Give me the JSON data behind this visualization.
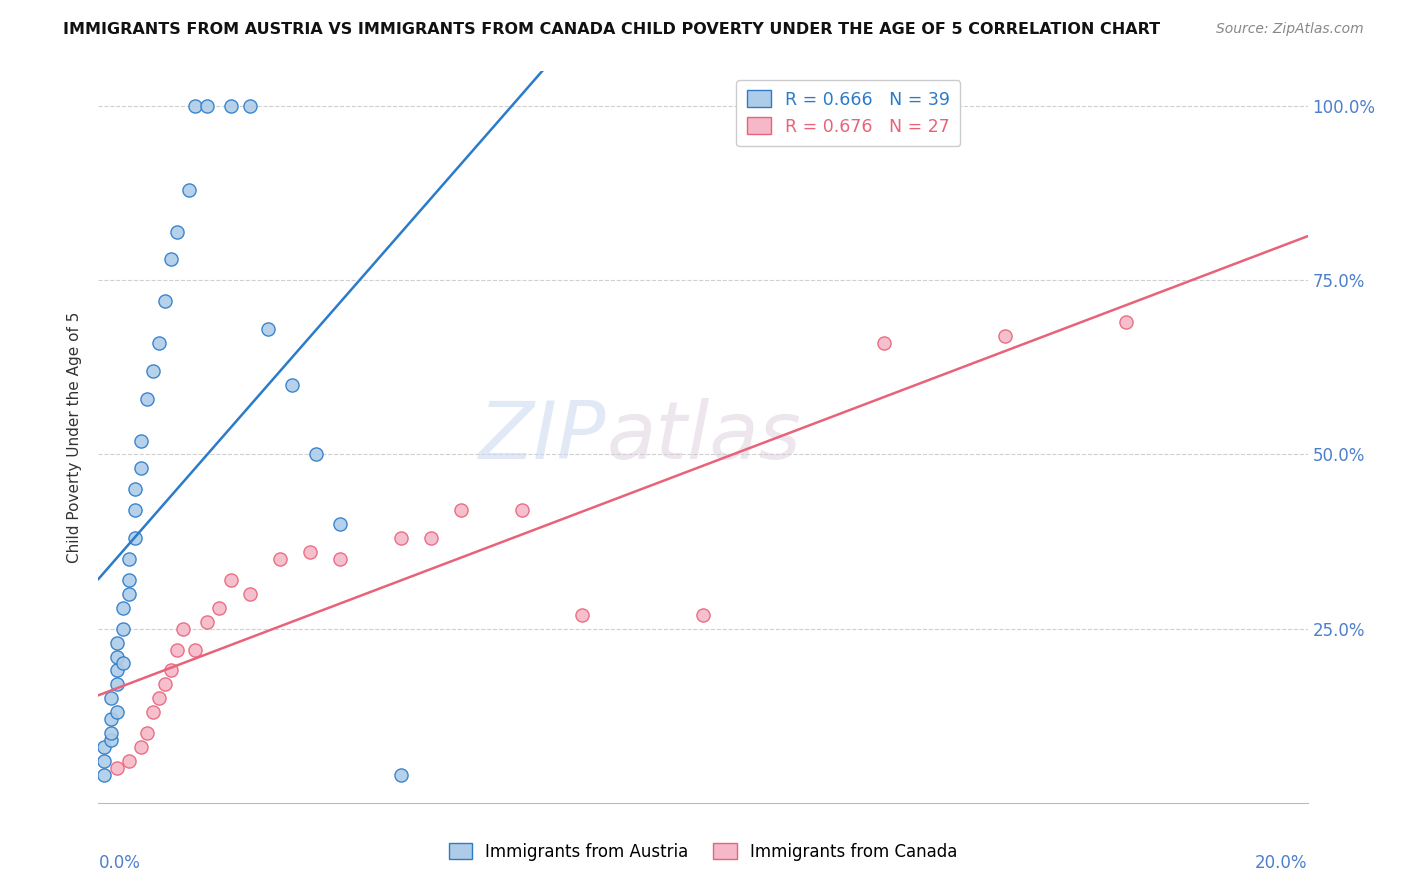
{
  "title": "IMMIGRANTS FROM AUSTRIA VS IMMIGRANTS FROM CANADA CHILD POVERTY UNDER THE AGE OF 5 CORRELATION CHART",
  "source": "Source: ZipAtlas.com",
  "ylabel": "Child Poverty Under the Age of 5",
  "legend_label_austria": "Immigrants from Austria",
  "legend_label_canada": "Immigrants from Canada",
  "watermark_zip": "ZIP",
  "watermark_atlas": "atlas",
  "austria_color": "#aecce8",
  "canada_color": "#f5b8c8",
  "austria_line_color": "#2b7bca",
  "canada_line_color": "#e8637a",
  "austria_R": 0.666,
  "canada_R": 0.676,
  "austria_N": 39,
  "canada_N": 27,
  "austria_scatter_x": [
    0.001,
    0.001,
    0.001,
    0.002,
    0.002,
    0.002,
    0.002,
    0.003,
    0.003,
    0.003,
    0.003,
    0.003,
    0.004,
    0.004,
    0.004,
    0.005,
    0.005,
    0.005,
    0.006,
    0.006,
    0.006,
    0.007,
    0.007,
    0.008,
    0.009,
    0.01,
    0.011,
    0.012,
    0.013,
    0.015,
    0.016,
    0.018,
    0.022,
    0.025,
    0.028,
    0.032,
    0.036,
    0.04,
    0.05
  ],
  "austria_scatter_y": [
    0.04,
    0.06,
    0.08,
    0.09,
    0.1,
    0.12,
    0.15,
    0.13,
    0.17,
    0.19,
    0.21,
    0.23,
    0.2,
    0.25,
    0.28,
    0.3,
    0.32,
    0.35,
    0.38,
    0.42,
    0.45,
    0.48,
    0.52,
    0.58,
    0.62,
    0.66,
    0.72,
    0.78,
    0.82,
    0.88,
    1.0,
    1.0,
    1.0,
    1.0,
    0.68,
    0.6,
    0.5,
    0.4,
    0.04
  ],
  "canada_scatter_x": [
    0.003,
    0.005,
    0.007,
    0.008,
    0.009,
    0.01,
    0.011,
    0.012,
    0.013,
    0.014,
    0.016,
    0.018,
    0.02,
    0.022,
    0.025,
    0.03,
    0.035,
    0.04,
    0.05,
    0.055,
    0.06,
    0.07,
    0.08,
    0.1,
    0.13,
    0.15,
    0.17
  ],
  "canada_scatter_y": [
    0.05,
    0.06,
    0.08,
    0.1,
    0.13,
    0.15,
    0.17,
    0.19,
    0.22,
    0.25,
    0.22,
    0.26,
    0.28,
    0.32,
    0.3,
    0.35,
    0.36,
    0.35,
    0.38,
    0.38,
    0.42,
    0.42,
    0.27,
    0.27,
    0.66,
    0.67,
    0.69
  ],
  "xlim": [
    0.0,
    0.2
  ],
  "ylim": [
    0.0,
    1.05
  ],
  "ytick_positions": [
    0.25,
    0.5,
    0.75,
    1.0
  ],
  "ytick_labels": [
    "25.0%",
    "50.0%",
    "75.0%",
    "100.0%"
  ],
  "right_axis_color": "#4d7fcc",
  "grid_color": "#d0d0d0",
  "title_fontsize": 11.5,
  "source_fontsize": 10,
  "tick_label_color": "#4d7fcc"
}
